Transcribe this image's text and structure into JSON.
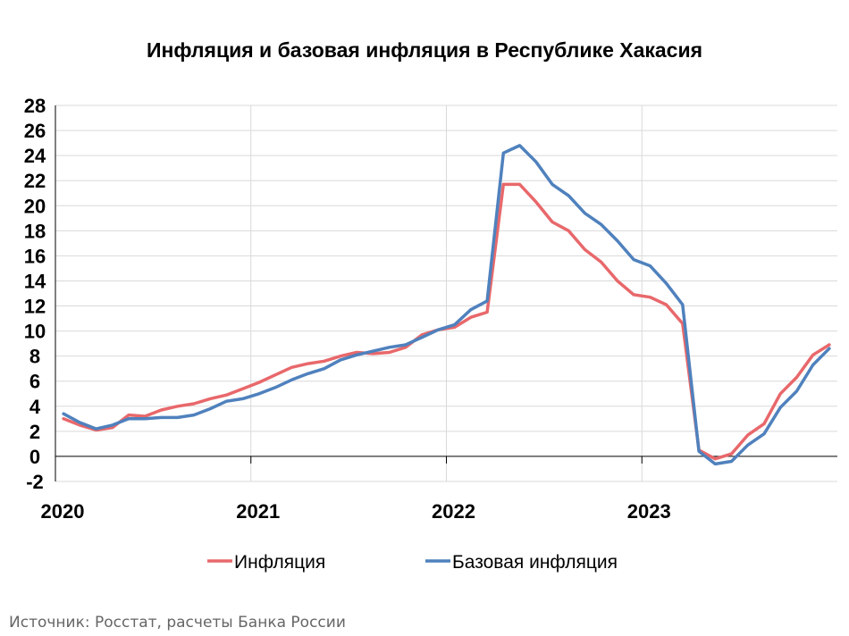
{
  "chart_data": {
    "type": "line",
    "title": "Инфляция и базовая инфляция в Республике Хакасия",
    "xlabel": "",
    "ylabel": "",
    "ylim": [
      -2,
      28
    ],
    "y_ticks": [
      -2,
      0,
      2,
      4,
      6,
      8,
      10,
      12,
      14,
      16,
      18,
      20,
      22,
      24,
      26,
      28
    ],
    "x_ticks": [
      "2020",
      "2021",
      "2022",
      "2023"
    ],
    "grid": true,
    "legend_position": "bottom",
    "x": [
      "2020-01",
      "2020-02",
      "2020-03",
      "2020-04",
      "2020-05",
      "2020-06",
      "2020-07",
      "2020-08",
      "2020-09",
      "2020-10",
      "2020-11",
      "2020-12",
      "2021-01",
      "2021-02",
      "2021-03",
      "2021-04",
      "2021-05",
      "2021-06",
      "2021-07",
      "2021-08",
      "2021-09",
      "2021-10",
      "2021-11",
      "2021-12",
      "2022-01",
      "2022-02",
      "2022-03",
      "2022-04",
      "2022-05",
      "2022-06",
      "2022-07",
      "2022-08",
      "2022-09",
      "2022-10",
      "2022-11",
      "2022-12",
      "2023-01",
      "2023-02",
      "2023-03",
      "2023-04",
      "2023-05",
      "2023-06",
      "2023-07",
      "2023-08",
      "2023-09",
      "2023-10",
      "2023-11",
      "2023-12"
    ],
    "series": [
      {
        "name": "Инфляция",
        "color": "#e8686b",
        "values": [
          3.0,
          2.5,
          2.1,
          2.3,
          3.3,
          3.2,
          3.7,
          4.0,
          4.2,
          4.6,
          4.9,
          5.4,
          5.9,
          6.5,
          7.1,
          7.4,
          7.6,
          8.0,
          8.3,
          8.2,
          8.3,
          8.7,
          9.7,
          10.1,
          10.3,
          11.1,
          11.5,
          21.7,
          21.7,
          20.3,
          18.7,
          18.0,
          16.5,
          15.5,
          14.0,
          12.9,
          12.7,
          12.1,
          10.6,
          0.5,
          -0.2,
          0.2,
          1.7,
          2.6,
          5.0,
          6.3,
          8.1,
          8.9
        ]
      },
      {
        "name": "Базовая инфляция",
        "color": "#4f81bd",
        "values": [
          3.4,
          2.7,
          2.2,
          2.5,
          3.0,
          3.0,
          3.1,
          3.1,
          3.3,
          3.8,
          4.4,
          4.6,
          5.0,
          5.5,
          6.1,
          6.6,
          7.0,
          7.7,
          8.1,
          8.4,
          8.7,
          8.9,
          9.5,
          10.1,
          10.5,
          11.7,
          12.4,
          24.2,
          24.8,
          23.5,
          21.7,
          20.8,
          19.4,
          18.5,
          17.2,
          15.7,
          15.2,
          13.8,
          12.1,
          0.4,
          -0.6,
          -0.4,
          0.9,
          1.8,
          3.9,
          5.2,
          7.3,
          8.6
        ]
      }
    ],
    "source": "Источник: Росстат, расчеты Банка России"
  }
}
